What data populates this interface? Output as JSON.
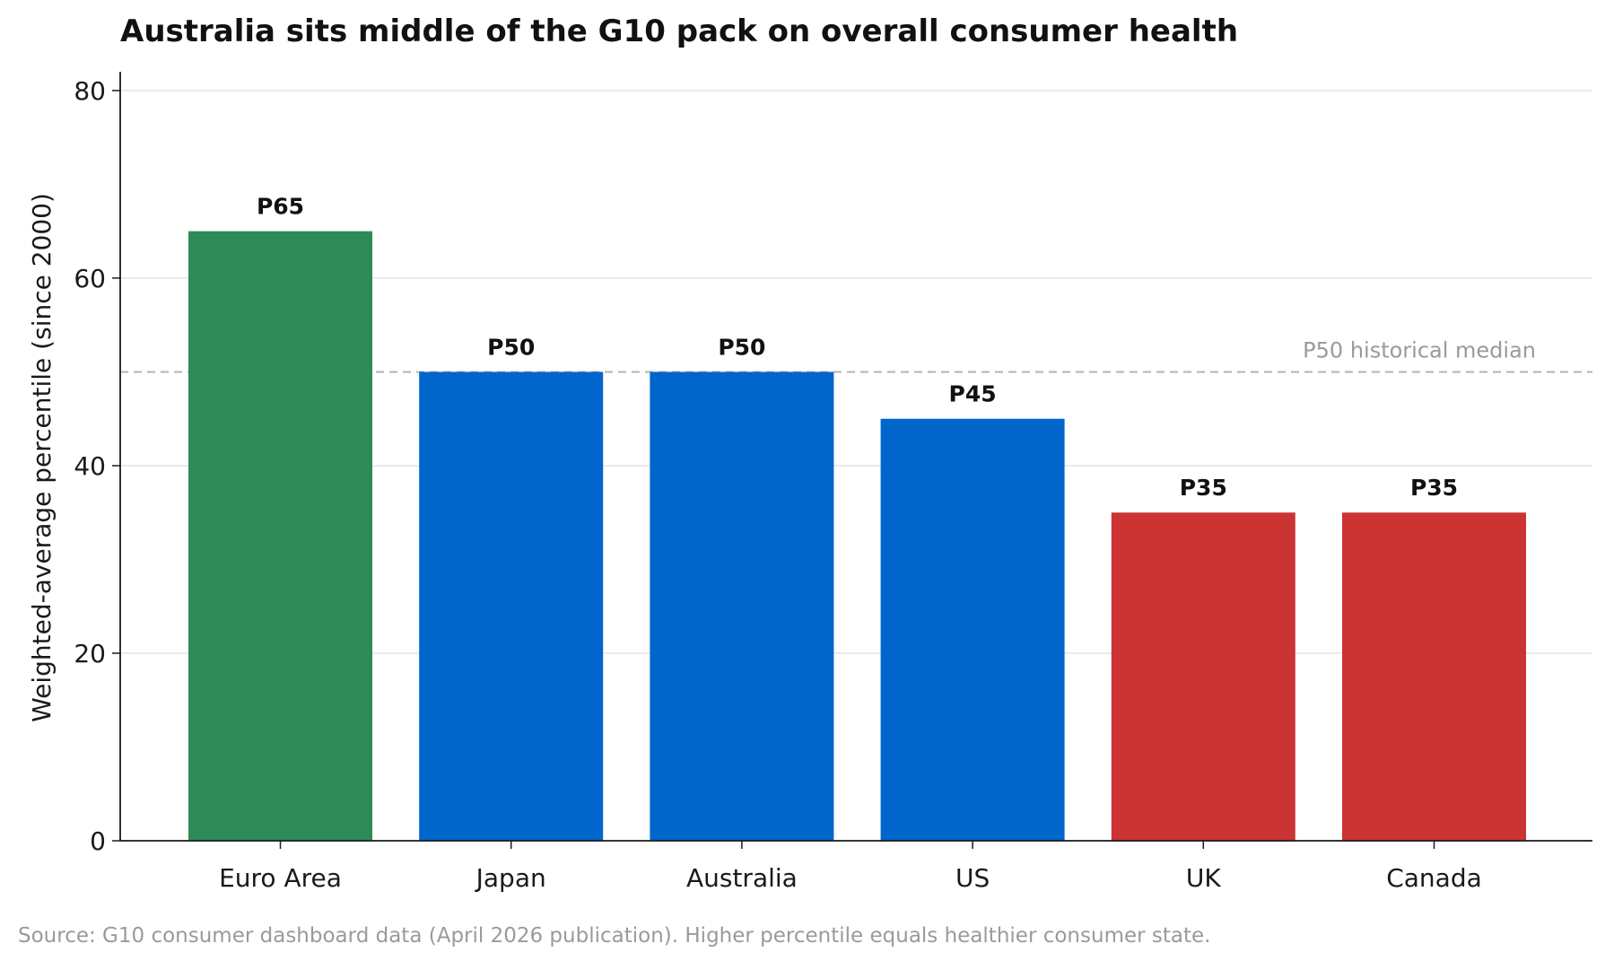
{
  "chart_data": {
    "type": "bar",
    "title": "Australia sits middle of the G10 pack on overall consumer health",
    "xlabel": "",
    "ylabel": "Weighted-average percentile (since 2000)",
    "categories": [
      "Euro Area",
      "Japan",
      "Australia",
      "US",
      "UK",
      "Canada"
    ],
    "values": [
      65,
      50,
      50,
      45,
      35,
      35
    ],
    "data_labels": [
      "P65",
      "P50",
      "P50",
      "P45",
      "P35",
      "P35"
    ],
    "bar_colors": [
      "#2e8b57",
      "#0066cc",
      "#0066cc",
      "#0066cc",
      "#cc3333",
      "#cc3333"
    ],
    "ylim": [
      0,
      82
    ],
    "yticks": [
      0,
      20,
      40,
      60,
      80
    ],
    "grid": "horizontal",
    "reference_line": {
      "value": 50,
      "label": "P50 historical median",
      "color": "#b3b3b3",
      "style": "dashed"
    },
    "source": "Source: G10 consumer dashboard data (April 2026 publication). Higher percentile equals healthier consumer state."
  }
}
